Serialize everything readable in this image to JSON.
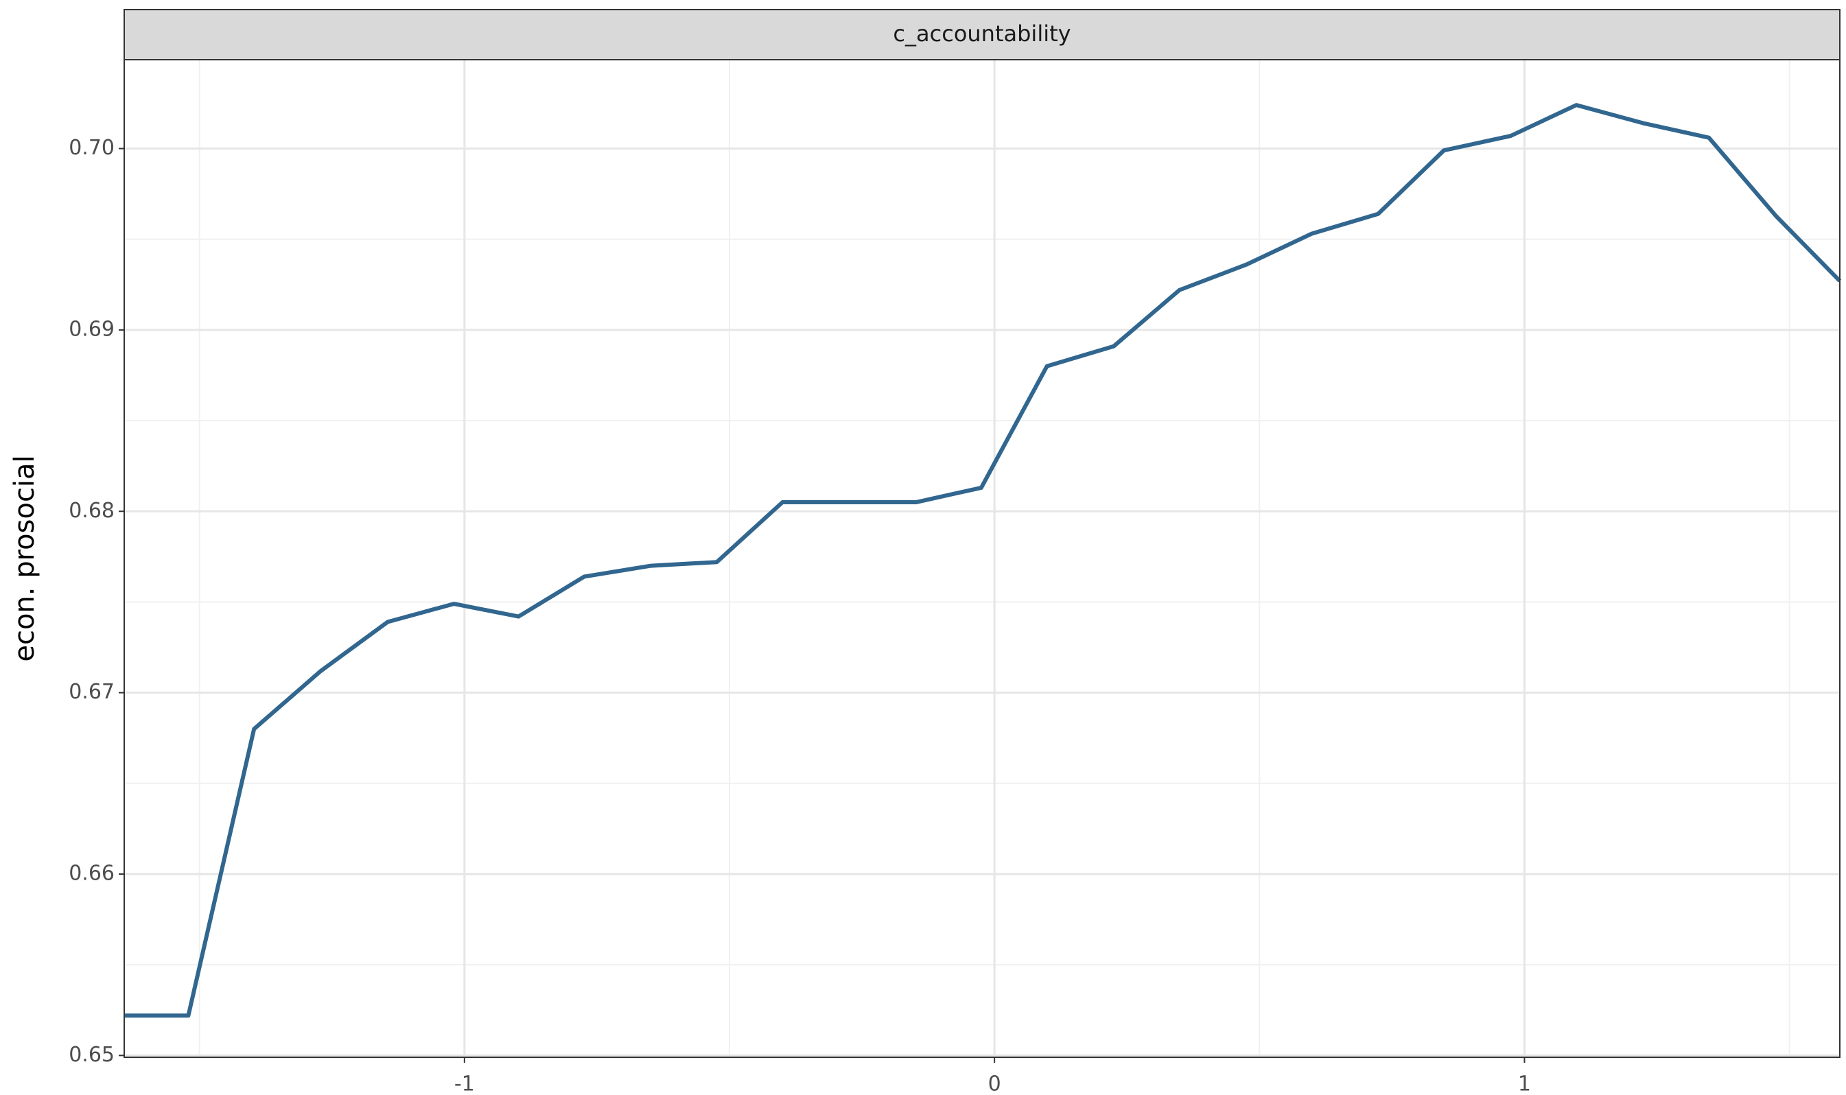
{
  "chart_data": {
    "type": "line",
    "strip_title": "c_accountability",
    "ylabel": "econ. prosocial",
    "x": [
      -1.642,
      -1.521,
      -1.397,
      -1.271,
      -1.145,
      -1.02,
      -0.898,
      -0.774,
      -0.648,
      -0.524,
      -0.4,
      -0.274,
      -0.148,
      -0.025,
      0.099,
      0.225,
      0.349,
      0.475,
      0.598,
      0.724,
      0.848,
      0.974,
      1.098,
      1.224,
      1.348,
      1.474,
      1.595
    ],
    "series": [
      {
        "color": "#31668f",
        "values": [
          0.6522,
          0.6522,
          0.668,
          0.6712,
          0.6739,
          0.6749,
          0.6742,
          0.6764,
          0.677,
          0.6772,
          0.6805,
          0.6805,
          0.6805,
          0.6813,
          0.688,
          0.6891,
          0.6922,
          0.6936,
          0.6953,
          0.6964,
          0.6999,
          0.7007,
          0.7024,
          0.7014,
          0.7006,
          0.6963,
          0.6927
        ]
      }
    ],
    "xlim": [
      -1.642,
      1.595
    ],
    "xticks": [
      -1,
      0,
      1
    ],
    "ylim": [
      0.6499,
      0.7049
    ],
    "yticks": [
      {
        "value": 0.65,
        "label": "0.65"
      },
      {
        "value": 0.66,
        "label": "0.66"
      },
      {
        "value": 0.67,
        "label": "0.67"
      },
      {
        "value": 0.68,
        "label": "0.68"
      },
      {
        "value": 0.69,
        "label": "0.69"
      },
      {
        "value": 0.7,
        "label": "0.70"
      }
    ],
    "grid": true
  }
}
